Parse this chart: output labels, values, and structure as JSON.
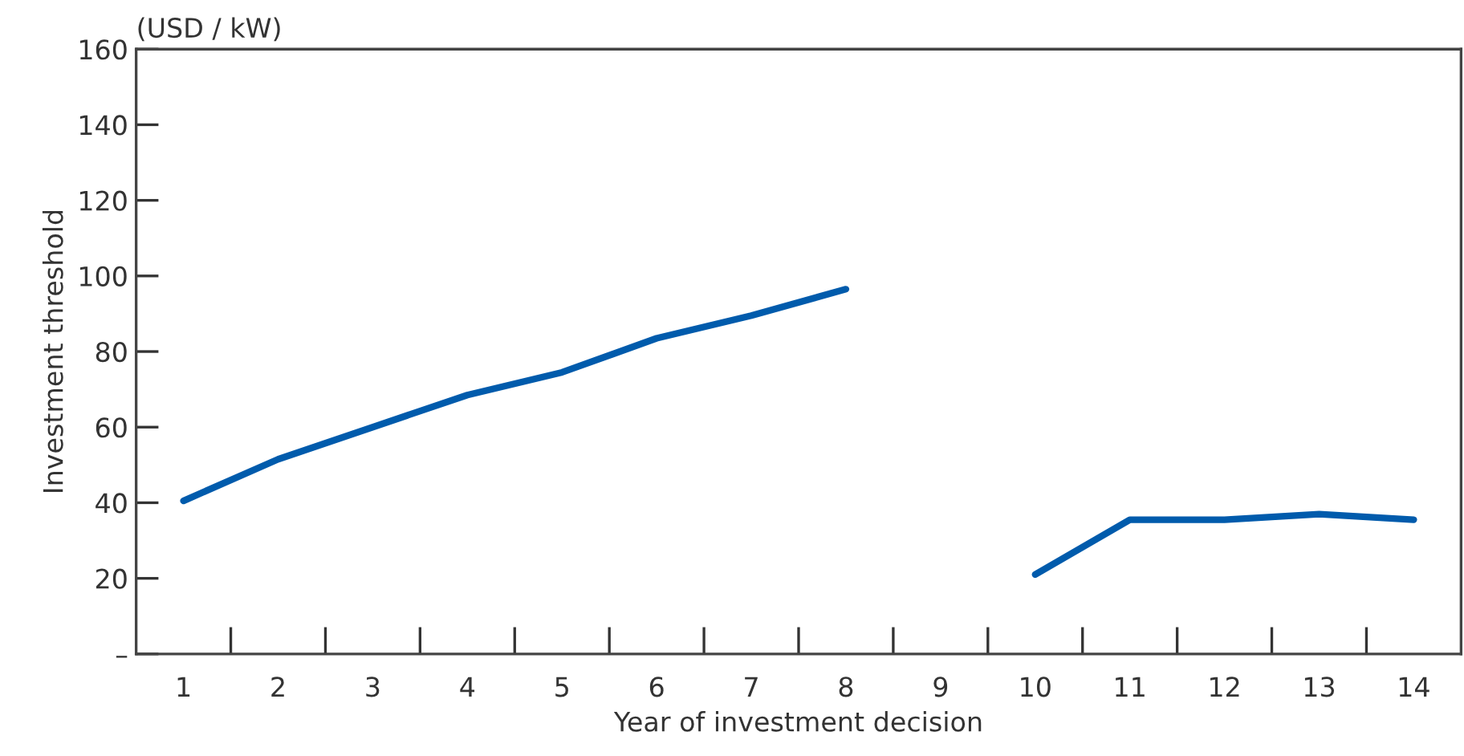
{
  "chart_data": {
    "type": "line",
    "xlabel": "Year of investment decision",
    "ylabel": "Investment threshold",
    "annotations": [
      "(USD / kW)"
    ],
    "categories": [
      "1",
      "2",
      "3",
      "4",
      "5",
      "6",
      "7",
      "8",
      "9",
      "10",
      "11",
      "12",
      "13",
      "14"
    ],
    "series": [
      {
        "color": "#005bac",
        "values": [
          40.5,
          51.5,
          60,
          68.5,
          74.5,
          83.5,
          89.5,
          96.5,
          null,
          21,
          35.5,
          35.5,
          37,
          35.5
        ]
      }
    ],
    "ylim": [
      0,
      160
    ],
    "yticks": [
      {
        "value": 0,
        "label": "–"
      },
      20,
      40,
      60,
      80,
      100,
      120,
      140,
      160
    ],
    "grid": false,
    "legend": false,
    "marker": "none",
    "line_style": "solid"
  }
}
